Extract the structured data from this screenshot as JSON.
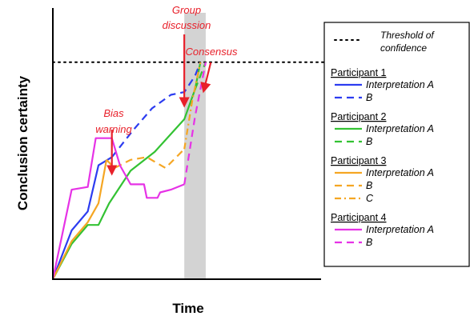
{
  "chart_data": {
    "type": "line",
    "xlabel": "Time",
    "ylabel": "Conclusion certainty",
    "xlim": [
      0,
      100
    ],
    "ylim": [
      0,
      100
    ],
    "grid": false,
    "legend_position": "right",
    "threshold": {
      "value": 80,
      "label": "Threshold of confidence",
      "label_lines": [
        "Threshold of",
        "confidence"
      ]
    },
    "group_discussion_band": {
      "x_start": 49,
      "x_end": 57
    },
    "annotations": [
      {
        "id": "bias-warning",
        "lines": [
          "Bias",
          "warning"
        ],
        "arrow_x": 22,
        "arrow_from_y": 60,
        "arrow_to_y": 45
      },
      {
        "id": "group-discussion",
        "lines": [
          "Group",
          "discussion"
        ],
        "arrow_x": 49,
        "arrow_from_y": 99,
        "arrow_to_y": 64
      },
      {
        "id": "consensus",
        "lines": [
          "Consensus"
        ],
        "arrow_x": 56.5,
        "arrow_from_y": 88,
        "arrow_to_y": 80
      }
    ],
    "legend": [
      {
        "participant": "Participant 1",
        "entries": [
          {
            "label": "Interpretation A",
            "color": "#2c3cf0",
            "dash": "solid"
          },
          {
            "label": "B",
            "color": "#2c3cf0",
            "dash": "dash"
          }
        ]
      },
      {
        "participant": "Participant 2",
        "entries": [
          {
            "label": "Interpretation A",
            "color": "#33c233",
            "dash": "solid"
          },
          {
            "label": "B",
            "color": "#33c233",
            "dash": "dash"
          }
        ]
      },
      {
        "participant": "Participant 3",
        "entries": [
          {
            "label": "Interpretation A",
            "color": "#f5a623",
            "dash": "solid"
          },
          {
            "label": "B",
            "color": "#f5a623",
            "dash": "dash"
          },
          {
            "label": "C",
            "color": "#f5a623",
            "dash": "dashdot"
          }
        ]
      },
      {
        "participant": "Participant 4",
        "entries": [
          {
            "label": "Interpretation A",
            "color": "#e632e6",
            "dash": "solid"
          },
          {
            "label": "B",
            "color": "#e632e6",
            "dash": "dash"
          }
        ]
      }
    ],
    "series": [
      {
        "participant": "Participant 1",
        "interpretation": "A",
        "color": "#2c3cf0",
        "dash": "solid",
        "x": [
          0,
          7,
          13,
          17,
          22
        ],
        "y": [
          0,
          18,
          25,
          42,
          45
        ]
      },
      {
        "participant": "Participant 1",
        "interpretation": "B",
        "color": "#2c3cf0",
        "dash": "dash",
        "x": [
          22,
          30,
          37,
          44,
          49,
          53,
          55
        ],
        "y": [
          45,
          55,
          63,
          68,
          69,
          75,
          80
        ]
      },
      {
        "participant": "Participant 2",
        "interpretation": "A",
        "color": "#33c233",
        "dash": "solid",
        "x": [
          0,
          7,
          13,
          17,
          21,
          29,
          38,
          49,
          53,
          55
        ],
        "y": [
          0,
          13,
          20,
          20,
          28,
          40,
          47,
          59,
          70,
          80
        ]
      },
      {
        "participant": "Participant 2",
        "interpretation": "B",
        "color": "#33c233",
        "dash": "dash",
        "x": [
          53,
          57
        ],
        "y": [
          70,
          80
        ]
      },
      {
        "participant": "Participant 3",
        "interpretation": "A",
        "color": "#f5a623",
        "dash": "solid",
        "x": [
          0,
          7,
          13,
          17,
          20
        ],
        "y": [
          0,
          14,
          21,
          28,
          44
        ]
      },
      {
        "participant": "Participant 3",
        "interpretation": "B",
        "color": "#f5a623",
        "dash": "dash",
        "x": [
          20,
          23,
          29,
          35,
          42,
          49
        ],
        "y": [
          44,
          41,
          44,
          45,
          41,
          48
        ]
      },
      {
        "participant": "Participant 3",
        "interpretation": "C",
        "color": "#f5a623",
        "dash": "dashdot",
        "x": [
          49,
          52,
          55
        ],
        "y": [
          48,
          66,
          80
        ]
      },
      {
        "participant": "Participant 4",
        "interpretation": "A",
        "color": "#e632e6",
        "dash": "solid",
        "x": [
          0,
          7,
          13,
          16,
          22,
          25,
          29,
          34,
          35,
          39,
          40,
          44,
          49
        ],
        "y": [
          0,
          33,
          34,
          52,
          52,
          42,
          35,
          35,
          30,
          30,
          32,
          33,
          35
        ]
      },
      {
        "participant": "Participant 4",
        "interpretation": "B",
        "color": "#e632e6",
        "dash": "dash",
        "x": [
          49,
          53,
          57
        ],
        "y": [
          35,
          60,
          80
        ]
      }
    ]
  }
}
